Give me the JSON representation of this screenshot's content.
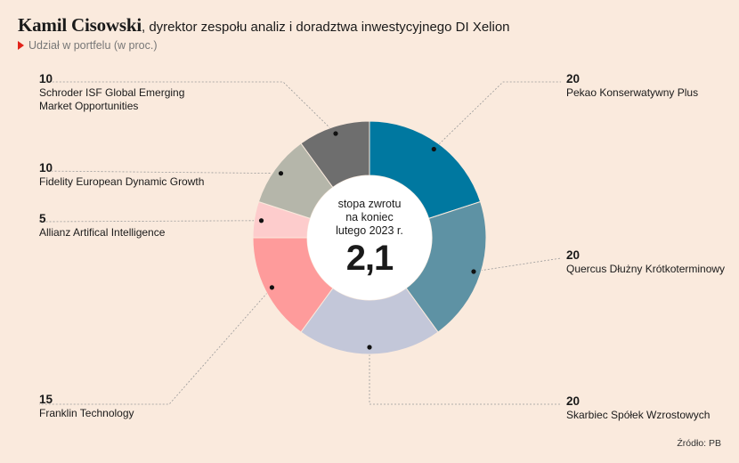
{
  "header": {
    "name": "Kamil Cisowski",
    "role": ", dyrektor zespołu analiz i doradztwa inwestycyjnego DI Xelion",
    "subtitle": "Udział w portfelu (w proc.)"
  },
  "center": {
    "label": "stopa zwrotu\nna koniec\nlutego 2023 r.",
    "value": "2,1"
  },
  "source": "Źródło: PB",
  "chart_data": {
    "type": "pie",
    "title": "Udział w portfelu (w proc.)",
    "donut": true,
    "slices": [
      {
        "label": "Pekao Konserwatywny Plus",
        "value": 20,
        "display": "20",
        "color": "#0078a0"
      },
      {
        "label": "Quercus Dłużny Krótkoterminowy",
        "value": 20,
        "display": "20",
        "color": "#5e92a4"
      },
      {
        "label": "Skarbiec Spółek Wzrostowych",
        "value": 20,
        "display": "20",
        "color": "#c3c7d9"
      },
      {
        "label": "Franklin Technology",
        "value": 15,
        "display": "15",
        "color": "#fe9b9b"
      },
      {
        "label": "Allianz Artifical Intelligence",
        "value": 5,
        "display": "5",
        "color": "#fdcccc"
      },
      {
        "label": "Fidelity European Dynamic Growth",
        "value": 10,
        "display": "10",
        "color": "#b5b6aa"
      },
      {
        "label": "Schroder ISF Global Emerging Market Opportunities",
        "value": 10,
        "display": "10",
        "color": "#6e6e6e"
      }
    ]
  }
}
